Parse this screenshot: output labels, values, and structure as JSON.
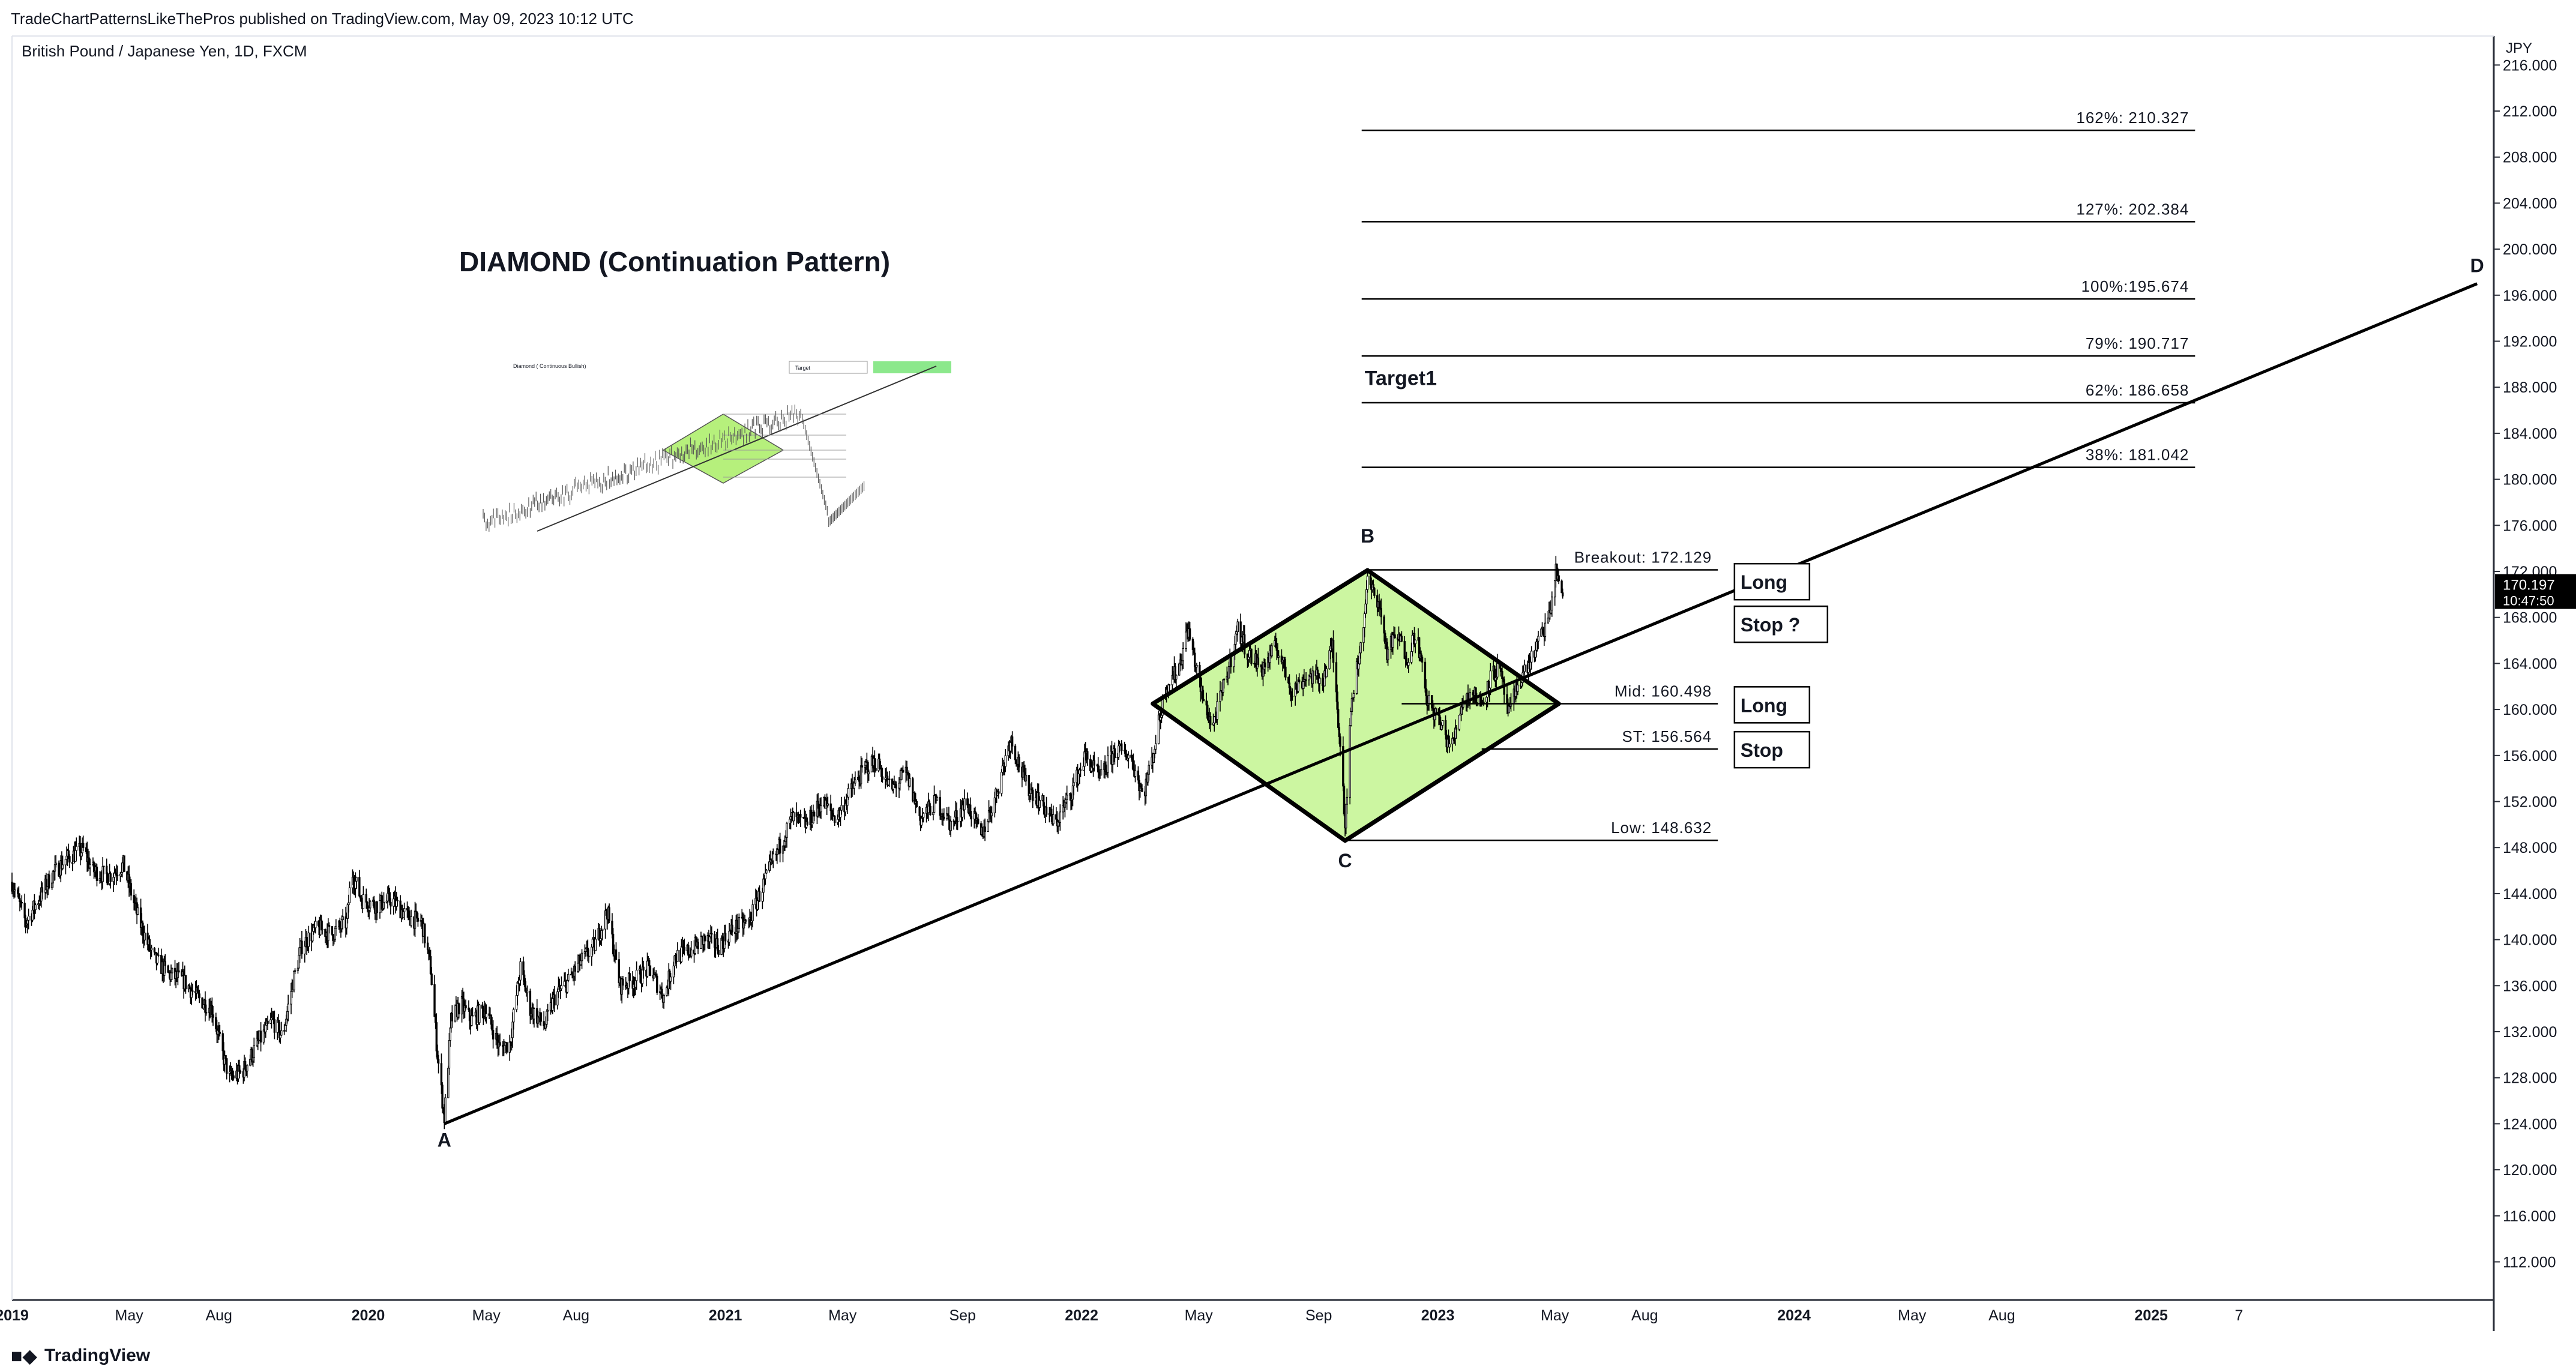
{
  "header": {
    "published": "TradeChartPatternsLikeThePros published on TradingView.com, May 09, 2023 10:12 UTC",
    "symbol": "British Pound / Japanese Yen, 1D, FXCM",
    "currency": "JPY"
  },
  "footer": {
    "brand": "TradingView",
    "logo_icon": "tradingview-logo-icon"
  },
  "chart_data": {
    "type": "line",
    "title": "DIAMOND (Continuation Pattern)",
    "yaxis": {
      "unit": "JPY",
      "range": [
        109,
        218
      ],
      "ticks": [
        112,
        116,
        120,
        124,
        128,
        132,
        136,
        140,
        144,
        148,
        152,
        156,
        160,
        164,
        168,
        172,
        176,
        180,
        184,
        188,
        192,
        196,
        200,
        204,
        208,
        212,
        216
      ]
    },
    "xaxis": {
      "range": [
        "2019-01-01",
        "2025-12-15"
      ],
      "ticks": [
        {
          "date": "2019-01-01",
          "label": "2019",
          "bold": true
        },
        {
          "date": "2019-05-01",
          "label": "May"
        },
        {
          "date": "2019-08-01",
          "label": "Aug"
        },
        {
          "date": "2020-01-01",
          "label": "2020",
          "bold": true
        },
        {
          "date": "2020-05-01",
          "label": "May"
        },
        {
          "date": "2020-08-01",
          "label": "Aug"
        },
        {
          "date": "2021-01-01",
          "label": "2021",
          "bold": true
        },
        {
          "date": "2021-05-01",
          "label": "May"
        },
        {
          "date": "2021-09-01",
          "label": "Sep"
        },
        {
          "date": "2022-01-01",
          "label": "2022",
          "bold": true
        },
        {
          "date": "2022-05-01",
          "label": "May"
        },
        {
          "date": "2022-09-01",
          "label": "Sep"
        },
        {
          "date": "2023-01-01",
          "label": "2023",
          "bold": true
        },
        {
          "date": "2023-05-01",
          "label": "May"
        },
        {
          "date": "2023-08-01",
          "label": "Aug"
        },
        {
          "date": "2024-01-01",
          "label": "2024",
          "bold": true
        },
        {
          "date": "2024-05-01",
          "label": "May"
        },
        {
          "date": "2024-08-01",
          "label": "Aug"
        },
        {
          "date": "2025-01-01",
          "label": "2025",
          "bold": true
        },
        {
          "date": "2025-04-01",
          "label": "7"
        }
      ]
    },
    "price_series": [
      [
        "2019-01-01",
        145.0
      ],
      [
        "2019-01-15",
        141.5
      ],
      [
        "2019-01-25",
        143.0
      ],
      [
        "2019-02-10",
        145.5
      ],
      [
        "2019-02-25",
        147.0
      ],
      [
        "2019-03-15",
        147.8
      ],
      [
        "2019-03-25",
        146.0
      ],
      [
        "2019-04-10",
        145.5
      ],
      [
        "2019-04-25",
        146.5
      ],
      [
        "2019-05-10",
        142.0
      ],
      [
        "2019-05-25",
        138.5
      ],
      [
        "2019-06-10",
        137.0
      ],
      [
        "2019-06-25",
        136.5
      ],
      [
        "2019-07-10",
        135.0
      ],
      [
        "2019-07-25",
        134.0
      ],
      [
        "2019-08-05",
        130.0
      ],
      [
        "2019-08-12",
        128.0
      ],
      [
        "2019-08-25",
        128.5
      ],
      [
        "2019-09-10",
        131.0
      ],
      [
        "2019-09-25",
        133.0
      ],
      [
        "2019-10-05",
        131.5
      ],
      [
        "2019-10-15",
        136.0
      ],
      [
        "2019-10-25",
        139.5
      ],
      [
        "2019-11-10",
        141.0
      ],
      [
        "2019-11-25",
        140.5
      ],
      [
        "2019-12-10",
        141.5
      ],
      [
        "2019-12-15",
        146.0
      ],
      [
        "2019-12-25",
        143.5
      ],
      [
        "2020-01-10",
        143.0
      ],
      [
        "2020-01-25",
        143.5
      ],
      [
        "2020-02-10",
        142.0
      ],
      [
        "2020-02-25",
        141.5
      ],
      [
        "2020-03-05",
        137.5
      ],
      [
        "2020-03-12",
        130.0
      ],
      [
        "2020-03-19",
        124.5
      ],
      [
        "2020-03-26",
        133.0
      ],
      [
        "2020-04-05",
        134.5
      ],
      [
        "2020-04-15",
        133.0
      ],
      [
        "2020-04-30",
        134.0
      ],
      [
        "2020-05-15",
        130.5
      ],
      [
        "2020-05-25",
        131.0
      ],
      [
        "2020-06-05",
        137.5
      ],
      [
        "2020-06-15",
        134.0
      ],
      [
        "2020-06-30",
        132.5
      ],
      [
        "2020-07-10",
        135.0
      ],
      [
        "2020-07-25",
        136.5
      ],
      [
        "2020-08-05",
        138.0
      ],
      [
        "2020-08-20",
        139.5
      ],
      [
        "2020-09-02",
        142.5
      ],
      [
        "2020-09-15",
        136.0
      ],
      [
        "2020-09-30",
        136.5
      ],
      [
        "2020-10-15",
        137.5
      ],
      [
        "2020-10-30",
        135.0
      ],
      [
        "2020-11-10",
        138.5
      ],
      [
        "2020-11-25",
        139.0
      ],
      [
        "2020-12-10",
        140.0
      ],
      [
        "2020-12-25",
        139.5
      ],
      [
        "2021-01-10",
        141.0
      ],
      [
        "2021-01-25",
        141.5
      ],
      [
        "2021-02-10",
        145.0
      ],
      [
        "2021-02-25",
        148.0
      ],
      [
        "2021-03-10",
        150.5
      ],
      [
        "2021-03-25",
        150.0
      ],
      [
        "2021-04-10",
        152.0
      ],
      [
        "2021-04-25",
        150.5
      ],
      [
        "2021-05-10",
        153.0
      ],
      [
        "2021-05-25",
        155.0
      ],
      [
        "2021-06-05",
        155.5
      ],
      [
        "2021-06-20",
        153.0
      ],
      [
        "2021-07-05",
        154.5
      ],
      [
        "2021-07-20",
        150.5
      ],
      [
        "2021-08-05",
        152.0
      ],
      [
        "2021-08-20",
        150.0
      ],
      [
        "2021-09-05",
        152.0
      ],
      [
        "2021-09-20",
        149.0
      ],
      [
        "2021-10-05",
        152.5
      ],
      [
        "2021-10-20",
        157.5
      ],
      [
        "2021-11-05",
        153.5
      ],
      [
        "2021-11-20",
        152.0
      ],
      [
        "2021-12-05",
        150.0
      ],
      [
        "2021-12-20",
        152.5
      ],
      [
        "2022-01-05",
        156.0
      ],
      [
        "2022-01-20",
        154.0
      ],
      [
        "2022-02-05",
        156.5
      ],
      [
        "2022-02-20",
        156.0
      ],
      [
        "2022-03-05",
        152.5
      ],
      [
        "2022-03-15",
        156.0
      ],
      [
        "2022-03-28",
        162.0
      ],
      [
        "2022-04-10",
        163.5
      ],
      [
        "2022-04-20",
        167.0
      ],
      [
        "2022-05-05",
        161.0
      ],
      [
        "2022-05-15",
        158.5
      ],
      [
        "2022-05-30",
        163.0
      ],
      [
        "2022-06-10",
        167.0
      ],
      [
        "2022-06-20",
        165.0
      ],
      [
        "2022-07-05",
        163.5
      ],
      [
        "2022-07-20",
        165.5
      ],
      [
        "2022-08-05",
        161.5
      ],
      [
        "2022-08-20",
        163.0
      ],
      [
        "2022-09-05",
        162.5
      ],
      [
        "2022-09-15",
        165.5
      ],
      [
        "2022-09-25",
        155.0
      ],
      [
        "2022-09-28",
        150.0
      ],
      [
        "2022-10-05",
        161.0
      ],
      [
        "2022-10-15",
        166.0
      ],
      [
        "2022-10-21",
        171.0
      ],
      [
        "2022-11-01",
        169.5
      ],
      [
        "2022-11-10",
        165.0
      ],
      [
        "2022-11-20",
        166.5
      ],
      [
        "2022-12-01",
        164.5
      ],
      [
        "2022-12-10",
        167.0
      ],
      [
        "2022-12-20",
        161.0
      ],
      [
        "2023-01-05",
        158.5
      ],
      [
        "2023-01-15",
        156.5
      ],
      [
        "2023-01-25",
        160.5
      ],
      [
        "2023-02-05",
        161.5
      ],
      [
        "2023-02-15",
        160.5
      ],
      [
        "2023-02-25",
        163.0
      ],
      [
        "2023-03-05",
        163.5
      ],
      [
        "2023-03-15",
        159.5
      ],
      [
        "2023-03-25",
        162.5
      ],
      [
        "2023-04-05",
        164.0
      ],
      [
        "2023-04-15",
        166.0
      ],
      [
        "2023-04-25",
        168.0
      ],
      [
        "2023-05-02",
        172.0
      ],
      [
        "2023-05-09",
        170.2
      ]
    ],
    "current_price": {
      "value": "170.197",
      "countdown": "10:47:50"
    },
    "trendline": {
      "from": [
        "2020-03-19",
        124.0
      ],
      "to": [
        "2025-12-01",
        197.0
      ]
    },
    "diamond": {
      "B": [
        "2022-10-21",
        172.1
      ],
      "L": [
        "2022-03-15",
        160.5
      ],
      "C": [
        "2022-09-28",
        148.6
      ],
      "R": [
        "2023-05-05",
        160.5
      ]
    },
    "levels": [
      {
        "label": "162%: 210.327",
        "value": 210.327,
        "from": "2022-10-15",
        "to": "2025-02-15"
      },
      {
        "label": "127%: 202.384",
        "value": 202.384,
        "from": "2022-10-15",
        "to": "2025-02-15"
      },
      {
        "label": "100%:195.674",
        "value": 195.674,
        "from": "2022-10-15",
        "to": "2025-02-15"
      },
      {
        "label": "79%: 190.717",
        "value": 190.717,
        "from": "2022-10-15",
        "to": "2025-02-15"
      },
      {
        "label": "62%: 186.658",
        "value": 186.658,
        "from": "2022-10-15",
        "to": "2025-02-15"
      },
      {
        "label": "38%: 181.042",
        "value": 181.042,
        "from": "2022-10-15",
        "to": "2025-02-15"
      },
      {
        "label": "Breakout: 172.129",
        "value": 172.129,
        "from": "2022-10-21",
        "to": "2023-10-15"
      },
      {
        "label": "Mid: 160.498",
        "value": 160.498,
        "from": "2022-11-25",
        "to": "2023-10-15"
      },
      {
        "label": "ST: 156.564",
        "value": 156.564,
        "from": "2023-02-15",
        "to": "2023-10-15"
      },
      {
        "label": "Low: 148.632",
        "value": 148.632,
        "from": "2022-09-28",
        "to": "2023-10-15"
      }
    ],
    "points": [
      {
        "label": "A",
        "at": [
          "2020-03-19",
          122.0
        ]
      },
      {
        "label": "B",
        "at": [
          "2022-10-21",
          174.5
        ]
      },
      {
        "label": "C",
        "at": [
          "2022-09-28",
          146.3
        ]
      },
      {
        "label": "D",
        "at": [
          "2025-12-01",
          198.0
        ]
      }
    ],
    "target_label": {
      "text": "Target1",
      "at": [
        "2022-10-15",
        188.2
      ]
    },
    "boxes": [
      {
        "text": "Long",
        "at": [
          "2023-11-01",
          171.0
        ]
      },
      {
        "text": "Stop ?",
        "at": [
          "2023-11-01",
          167.3
        ]
      },
      {
        "text": "Long",
        "at": [
          "2023-11-01",
          160.3
        ]
      },
      {
        "text": "Stop",
        "at": [
          "2023-11-01",
          156.4
        ]
      }
    ],
    "inset": {
      "title": "Diamond ( Continuous Bullish)",
      "label": "Target"
    },
    "colors": {
      "diamond_fill": "#c3f590",
      "line": "#000000",
      "candles": "#000000",
      "price_tag": "#000000",
      "inset_zone": "#8ce88c"
    }
  }
}
